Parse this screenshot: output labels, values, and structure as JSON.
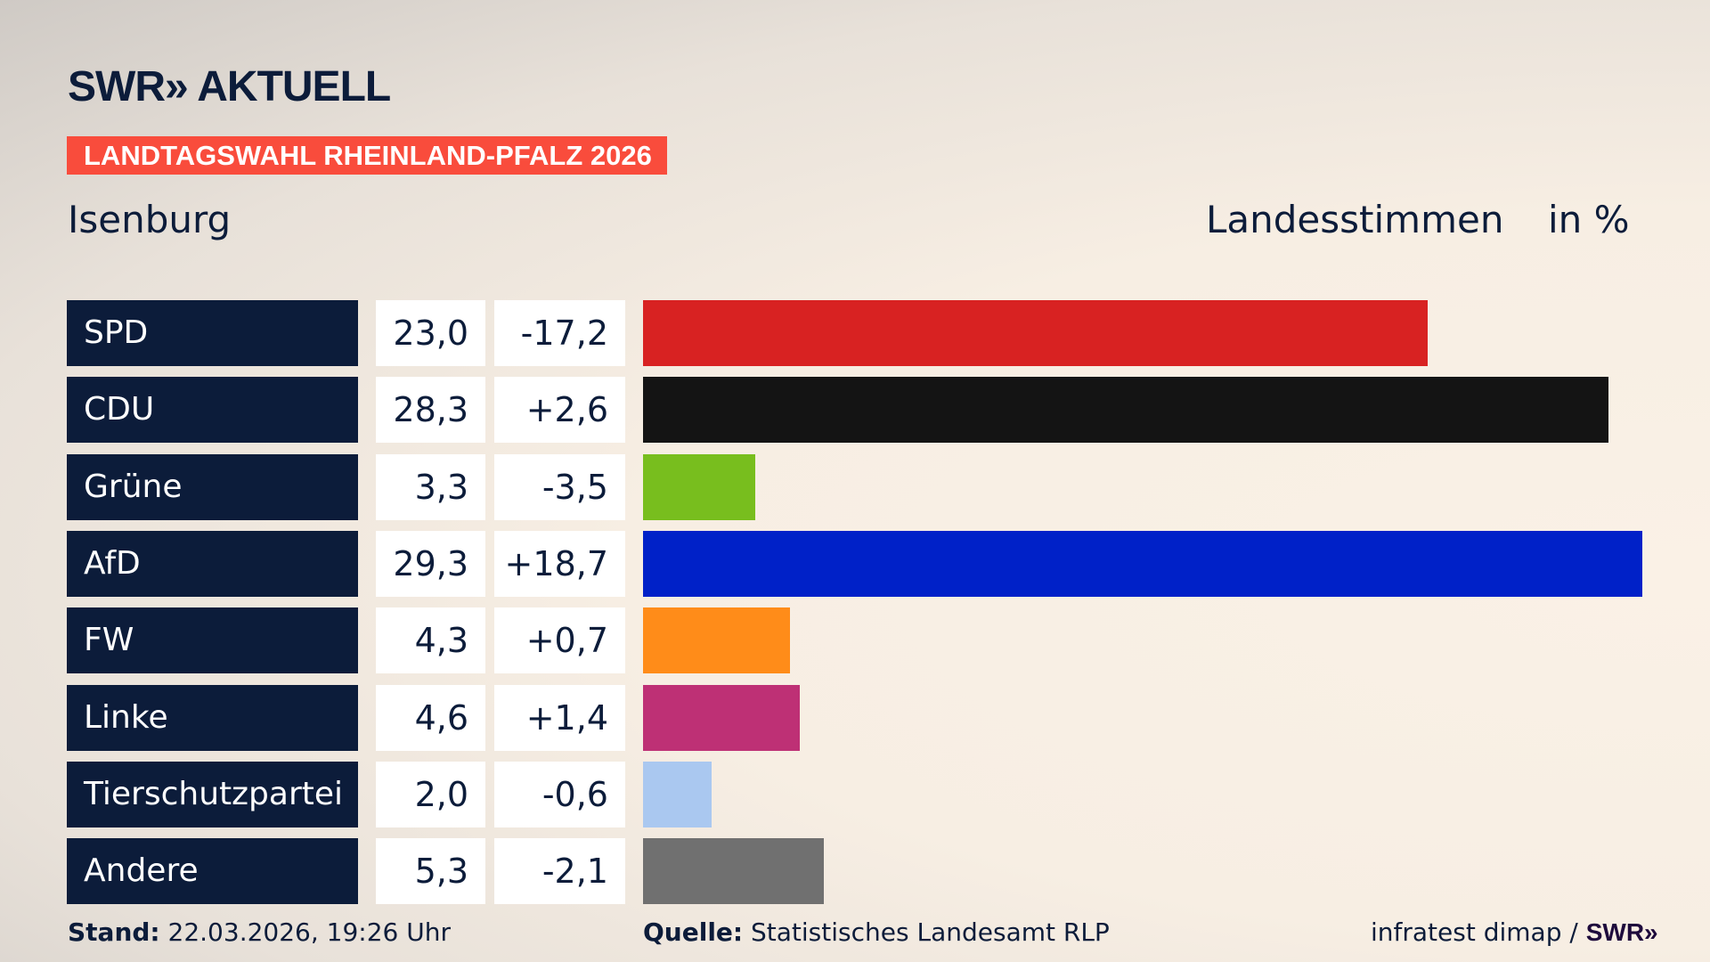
{
  "header": {
    "logo": "SWR» AKTUELL",
    "banner": "LANDTAGSWAHL RHEINLAND-PFALZ 2026",
    "region": "Isenburg",
    "metric": "Landesstimmen",
    "unit": "in %"
  },
  "chart_data": {
    "type": "bar",
    "orientation": "horizontal",
    "categories": [
      "SPD",
      "CDU",
      "Grüne",
      "AfD",
      "FW",
      "Linke",
      "Tierschutzpartei",
      "Andere"
    ],
    "values": [
      23.0,
      28.3,
      3.3,
      29.3,
      4.3,
      4.6,
      2.0,
      5.3
    ],
    "value_labels": [
      "23,0",
      "28,3",
      "3,3",
      "29,3",
      "4,3",
      "4,6",
      "2,0",
      "5,3"
    ],
    "diff_labels": [
      "-17,2",
      "+2,6",
      "-3,5",
      "+18,7",
      "+0,7",
      "+1,4",
      "-0,6",
      "-2,1"
    ],
    "colors": [
      "#d82222",
      "#141414",
      "#78be1e",
      "#0021c8",
      "#ff8c19",
      "#be3075",
      "#aac8f0",
      "#707070"
    ],
    "xlim": [
      0,
      29.3
    ]
  },
  "footer": {
    "stand_label": "Stand:",
    "stand_value": "22.03.2026, 19:26 Uhr",
    "source_label": "Quelle:",
    "source_value": "Statistisches Landesamt RLP",
    "credit": "infratest dimap /",
    "credit_logo": "SWR»"
  }
}
